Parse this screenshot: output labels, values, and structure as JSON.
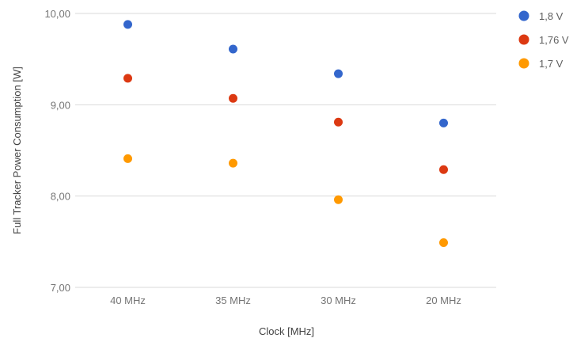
{
  "chart_data": {
    "type": "scatter",
    "title": "",
    "xlabel": "Clock [MHz]",
    "ylabel": "Full Tracker Power Consumption [W]",
    "categories": [
      "40 MHz",
      "35 MHz",
      "30 MHz",
      "20 MHz"
    ],
    "ylim": [
      7.0,
      10.0
    ],
    "yticks": [
      "7,00",
      "8,00",
      "9,00",
      "10,00"
    ],
    "grid": true,
    "legend_position": "top-right",
    "series": [
      {
        "name": "1,8 V",
        "color": "#3366cc",
        "values": [
          9.88,
          9.61,
          9.34,
          8.8
        ]
      },
      {
        "name": "1,76 V",
        "color": "#dc3912",
        "values": [
          9.29,
          9.07,
          8.81,
          8.29
        ]
      },
      {
        "name": "1,7 V",
        "color": "#ff9900",
        "values": [
          8.41,
          8.36,
          7.96,
          7.49
        ]
      }
    ]
  }
}
